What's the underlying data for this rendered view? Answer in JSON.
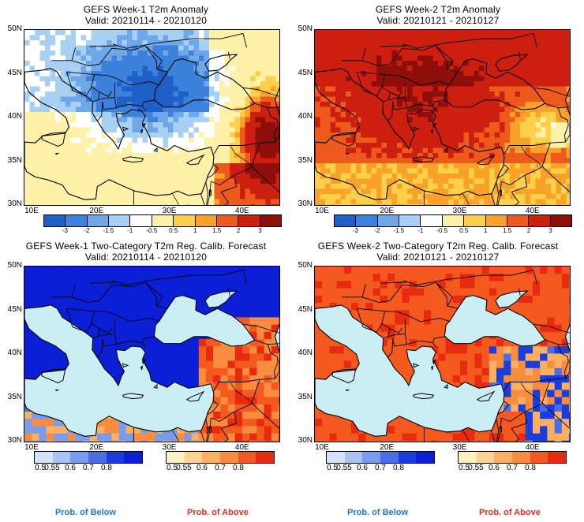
{
  "panels": {
    "tl": {
      "title1": "GEFS Week-1 T2m Anomaly",
      "title2": "Valid: 20210114 - 20210120"
    },
    "tr": {
      "title1": "GEFS Week-2 T2m Anomaly",
      "title2": "Valid: 20210121 - 20210127"
    },
    "bl": {
      "title1": "GEFS Week-1 Two-Category T2m Reg. Calib. Forecast",
      "title2": "Valid: 20210114 - 20210120"
    },
    "br": {
      "title1": "GEFS Week-2 Two-Category T2m Reg. Calib. Forecast",
      "title2": "Valid: 20210121 - 20210127"
    }
  },
  "axes": {
    "lat_labels": [
      "50N",
      "45N",
      "40N",
      "35N",
      "30N"
    ],
    "lon_labels": [
      "10E",
      "20E",
      "30E",
      "40E"
    ]
  },
  "anomaly_colorbar": {
    "ticks": [
      "-3",
      "-2",
      "-1.5",
      "-1",
      "-0.5",
      "0.5",
      "1",
      "1.5",
      "2",
      "3"
    ],
    "colors": [
      "#1e5fc8",
      "#3c82dc",
      "#6fa8e8",
      "#a8d0f2",
      "#ffffff",
      "#fff2a8",
      "#fdd049",
      "#f8a22a",
      "#ee5a1c",
      "#cd1f0f",
      "#8e0e0a"
    ]
  },
  "prob_colorbar": {
    "ticks": [
      "0.5",
      "0.55",
      "0.6",
      "0.7",
      "0.8"
    ],
    "below_colors": [
      "#d5e2fb",
      "#a9c2f3",
      "#7a9cec",
      "#4a6ee6",
      "#1a3de0",
      "#0a1fd6"
    ],
    "above_colors": [
      "#fff0c2",
      "#fed290",
      "#fdb062",
      "#f98c3e",
      "#f4591e",
      "#e82a10"
    ]
  },
  "legend": {
    "below_label": "Prob. of Below",
    "above_label": "Prob. of Above",
    "below_color": "#1f78d8",
    "above_color": "#e03020"
  }
}
